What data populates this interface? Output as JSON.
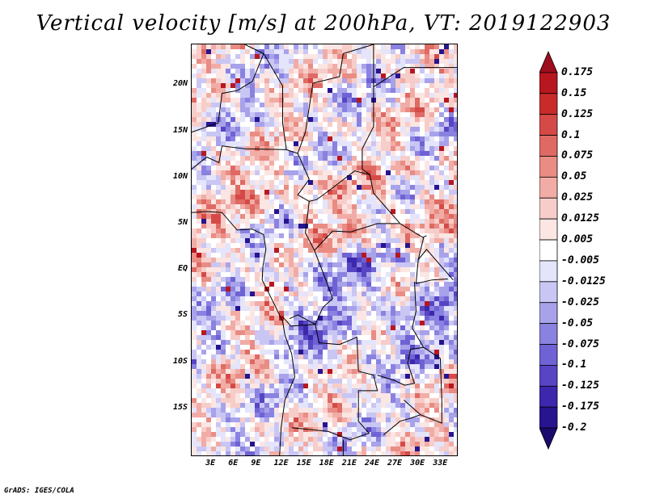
{
  "title": "Vertical velocity [m/s] at 200hPa, VT: 2019122903",
  "credit": "GrADS: IGES/COLA",
  "lat_labels": [
    "20N",
    "15N",
    "10N",
    "5N",
    "EQ",
    "5S",
    "10S",
    "15S"
  ],
  "lon_labels": [
    "3E",
    "6E",
    "9E",
    "12E",
    "15E",
    "18E",
    "21E",
    "24E",
    "27E",
    "30E",
    "33E"
  ],
  "lat_values": [
    20,
    15,
    10,
    5,
    0,
    -5,
    -10,
    -15
  ],
  "lon_values": [
    3,
    6,
    9,
    12,
    15,
    18,
    21,
    24,
    27,
    30,
    33
  ],
  "map_extent": {
    "lon_min": 0,
    "lon_max": 35,
    "lat_min": -20,
    "lat_max": 24.5
  },
  "colorbar": {
    "labels": [
      "0.175",
      "0.15",
      "0.125",
      "0.1",
      "0.075",
      "0.05",
      "0.025",
      "0.0125",
      "0.005",
      "-0.005",
      "-0.0125",
      "-0.025",
      "-0.05",
      "-0.075",
      "-0.1",
      "-0.125",
      "-0.175",
      "-0.2"
    ],
    "colors": [
      "#9e0d1e",
      "#b8171f",
      "#c92b2b",
      "#d54a46",
      "#df6a63",
      "#e98c84",
      "#f1aca6",
      "#f7cdc9",
      "#fbe6e4",
      "#ffffff",
      "#e4e4fb",
      "#c9c6f4",
      "#a8a2ea",
      "#8a82e0",
      "#6f62d4",
      "#5745c4",
      "#3d27ad",
      "#27148f",
      "#1a0a6e"
    ]
  }
}
